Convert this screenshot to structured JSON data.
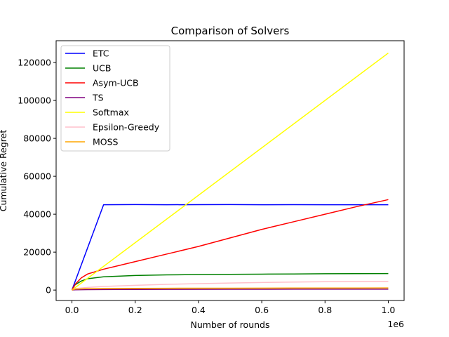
{
  "chart_data": {
    "type": "line",
    "title": "Comparison of Solvers",
    "xlabel": "Number of rounds",
    "ylabel": "Cumulative Regret",
    "x_offset_label": "1e6",
    "xlim": [
      -0.05,
      1.05
    ],
    "ylim": [
      -5500,
      131500
    ],
    "x_ticks": [
      0.0,
      0.2,
      0.4,
      0.6,
      0.8,
      1.0
    ],
    "x_tick_labels": [
      "0.0",
      "0.2",
      "0.4",
      "0.6",
      "0.8",
      "1.0"
    ],
    "y_ticks": [
      0,
      20000,
      40000,
      60000,
      80000,
      100000,
      120000
    ],
    "y_tick_labels": [
      "0",
      "20000",
      "40000",
      "60000",
      "80000",
      "100000",
      "120000"
    ],
    "grid": false,
    "legend_position": "top-left",
    "series": [
      {
        "name": "ETC",
        "color": "#0000ff",
        "x": [
          0,
          0.1,
          0.2,
          0.3,
          0.4,
          0.5,
          0.6,
          0.7,
          0.8,
          0.9,
          1.0
        ],
        "y": [
          0,
          45000,
          45100,
          45000,
          45050,
          45100,
          45000,
          45050,
          45000,
          45000,
          45000
        ]
      },
      {
        "name": "UCB",
        "color": "#008000",
        "x": [
          0,
          0.01,
          0.03,
          0.05,
          0.1,
          0.2,
          0.3,
          0.4,
          0.5,
          0.6,
          0.7,
          0.8,
          0.9,
          1.0
        ],
        "y": [
          0,
          2800,
          4800,
          6000,
          7000,
          7700,
          8000,
          8200,
          8300,
          8400,
          8500,
          8600,
          8650,
          8700
        ]
      },
      {
        "name": "Asym-UCB",
        "color": "#ff0000",
        "x": [
          0,
          0.01,
          0.03,
          0.05,
          0.08,
          0.1,
          0.2,
          0.3,
          0.4,
          0.5,
          0.6,
          0.7,
          0.8,
          0.9,
          1.0
        ],
        "y": [
          0,
          3000,
          6500,
          8500,
          10000,
          11000,
          15000,
          19000,
          23000,
          27500,
          32000,
          36000,
          40000,
          44000,
          47700
        ]
      },
      {
        "name": "TS",
        "color": "#800080",
        "x": [
          0,
          0.01,
          0.05,
          0.1,
          0.3,
          0.5,
          0.7,
          1.0
        ],
        "y": [
          0,
          150,
          250,
          300,
          380,
          420,
          450,
          480
        ]
      },
      {
        "name": "Softmax",
        "color": "#ffff00",
        "x": [
          0,
          1.0
        ],
        "y": [
          0,
          125000
        ]
      },
      {
        "name": "Epsilon-Greedy",
        "color": "#ffc0cb",
        "x": [
          0,
          0.01,
          0.05,
          0.1,
          0.2,
          0.3,
          0.4,
          0.5,
          0.6,
          0.7,
          0.8,
          0.9,
          1.0
        ],
        "y": [
          0,
          800,
          1400,
          1900,
          2500,
          3000,
          3400,
          3700,
          4000,
          4200,
          4400,
          4500,
          4600
        ]
      },
      {
        "name": "MOSS",
        "color": "#ffa500",
        "x": [
          0,
          0.01,
          0.05,
          0.1,
          0.3,
          0.5,
          0.7,
          1.0
        ],
        "y": [
          0,
          500,
          750,
          850,
          950,
          1000,
          1050,
          1100
        ]
      }
    ]
  }
}
